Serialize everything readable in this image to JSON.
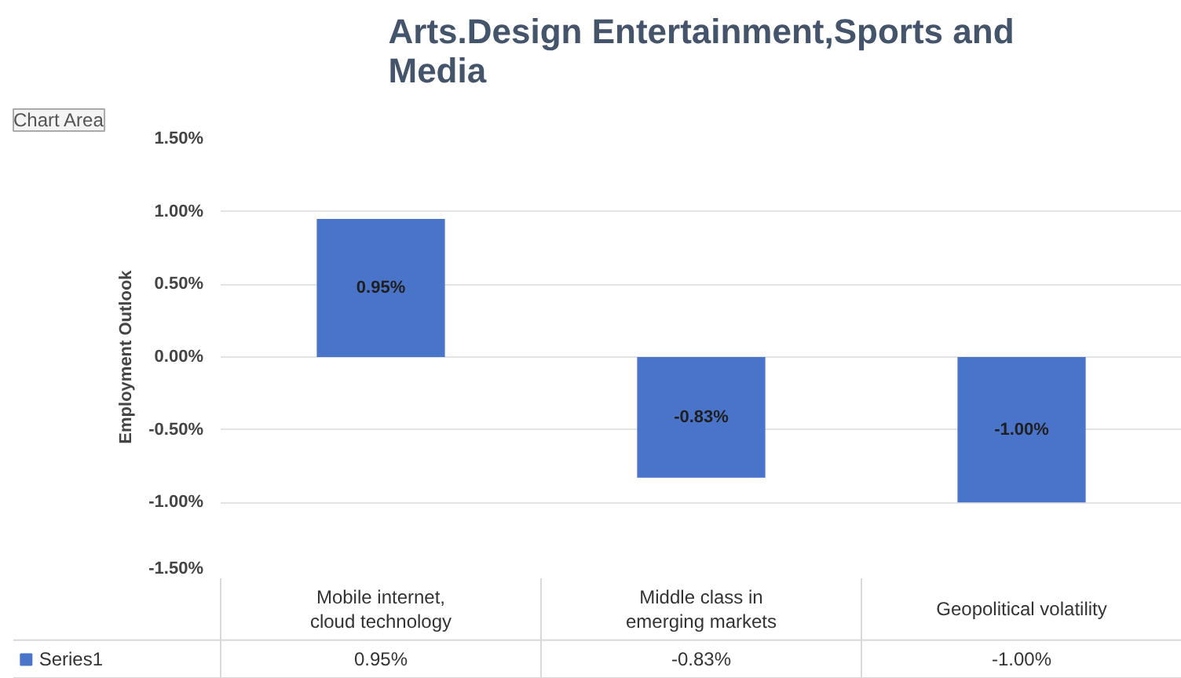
{
  "chart_data": {
    "type": "bar",
    "title": "Arts.Design Entertainment,Sports and Media",
    "ylabel": "Employment Outlook",
    "categories": [
      "Mobile internet,\ncloud technology",
      "Middle class in\nemerging markets",
      "Geopolitical volatility"
    ],
    "series": [
      {
        "name": "Series1",
        "color": "#4a74c9",
        "values": [
          0.95,
          -0.83,
          -1.0
        ],
        "value_labels": [
          "0.95%",
          "-0.83%",
          "-1.00%"
        ]
      }
    ],
    "ylim": [
      -1.5,
      1.5
    ],
    "yticks": [
      {
        "value": -1.5,
        "label": "-1.50%"
      },
      {
        "value": -1.0,
        "label": "-1.00%"
      },
      {
        "value": -0.5,
        "label": "-0.50%"
      },
      {
        "value": 0,
        "label": "0.00%"
      },
      {
        "value": 0.5,
        "label": "0.50%"
      },
      {
        "value": 1.0,
        "label": "1.00%"
      },
      {
        "value": 1.5,
        "label": "1.50%"
      }
    ],
    "grid": "y",
    "legend": "bottom left",
    "annotations": [
      "Chart Area"
    ]
  }
}
